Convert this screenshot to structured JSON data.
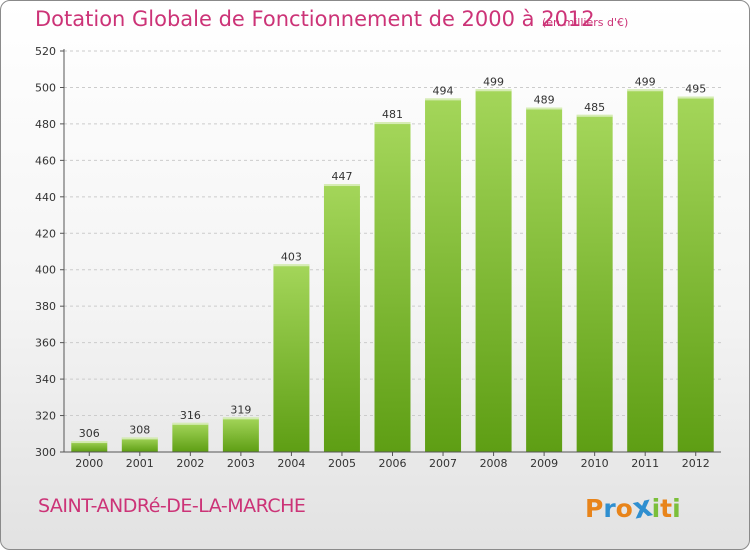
{
  "colors": {
    "accent": "#cc3377",
    "bar_light": "#a4d65a",
    "bar_dark": "#5e9e14",
    "grid": "#cccccc",
    "axis": "#555555"
  },
  "logo": {
    "letters": [
      "P",
      "r",
      "o",
      "x",
      "i",
      "t",
      "i"
    ],
    "letter_colors": [
      "#e8841a",
      "#2f8fd0",
      "#e8841a",
      "#2f8fd0",
      "#7bbf3a",
      "#e8841a",
      "#7bbf3a"
    ]
  },
  "chart_data": {
    "type": "bar",
    "title": "Dotation Globale de Fonctionnement de 2000 à 2012",
    "subtitle": "(en milliers d'€)",
    "commune": "SAINT-ANDRé-DE-LA-MARCHE",
    "xlabel": "",
    "ylabel": "",
    "categories": [
      "2000",
      "2001",
      "2002",
      "2003",
      "2004",
      "2005",
      "2006",
      "2007",
      "2008",
      "2009",
      "2010",
      "2011",
      "2012"
    ],
    "values": [
      306,
      308,
      316,
      319,
      403,
      447,
      481,
      494,
      499,
      489,
      485,
      499,
      495
    ],
    "ylim": [
      300,
      520
    ],
    "yticks": [
      300,
      320,
      340,
      360,
      380,
      400,
      420,
      440,
      460,
      480,
      500,
      520
    ],
    "grid": true
  }
}
